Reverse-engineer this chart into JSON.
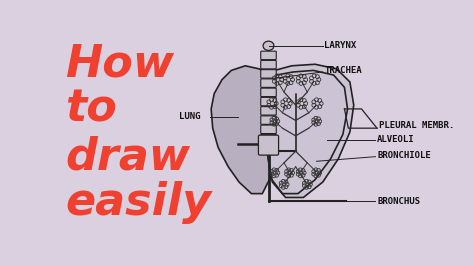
{
  "bg_color": "#dbd0e0",
  "text_color_red": "#f04030",
  "text_color_label": "#111111",
  "title_lines": [
    "How",
    "to",
    "draw",
    "easily"
  ],
  "title_fontsize": 32,
  "label_fontsize": 6.5,
  "lung_fill_left": "#b8b0c0",
  "lung_fill_right": "#ccc4d4",
  "lung_edge": "#222222",
  "branch_color": "#333333",
  "trachea_fill": "#c8c0cc"
}
